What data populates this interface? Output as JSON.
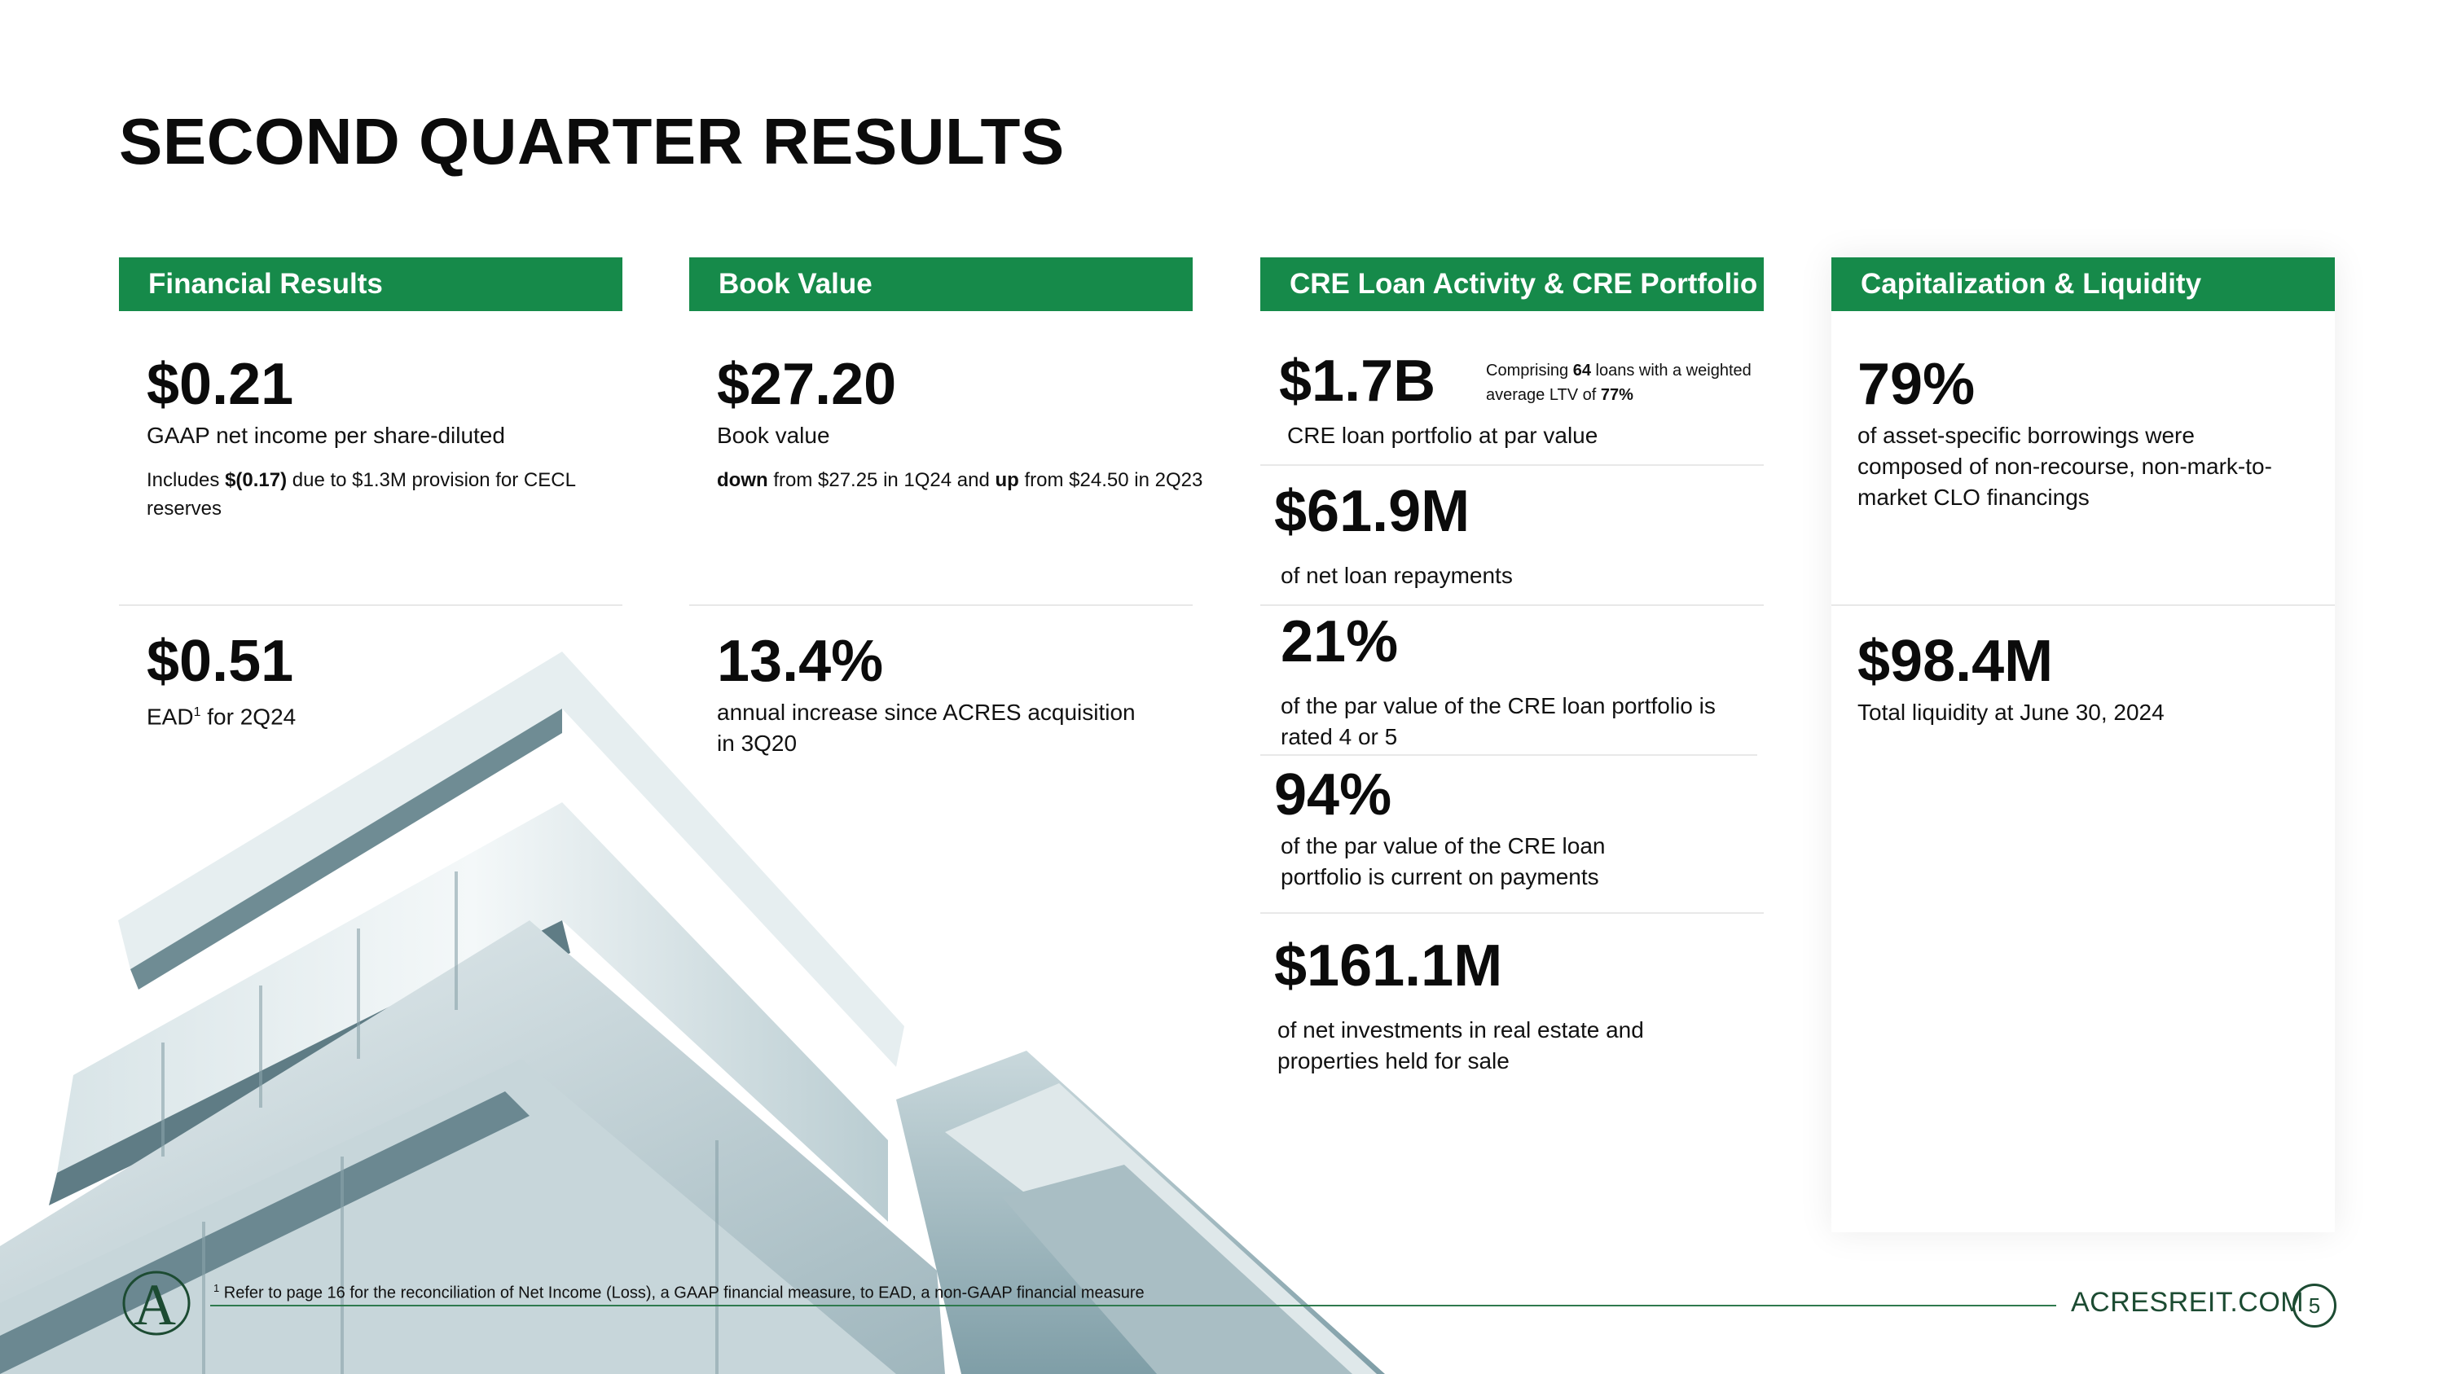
{
  "page": {
    "title": "SECOND QUARTER RESULTS",
    "site": "ACRESREIT.COM",
    "page_number": "5",
    "footnote_marker": "1",
    "footnote": "Refer to page 16 for the reconciliation of Net Income (Loss), a GAAP financial measure, to EAD, a non-GAAP financial measure",
    "logo_letter": "A"
  },
  "colors": {
    "header_green": "#168a4a",
    "footer_green": "#1c4b32"
  },
  "financial": {
    "header": "Financial Results",
    "eps_value": "$0.21",
    "eps_label": "GAAP net income per share-diluted",
    "eps_note_pre": "Includes ",
    "eps_note_bold": "$(0.17)",
    "eps_note_post": " due to $1.3M provision for CECL reserves",
    "ead_value": "$0.51",
    "ead_label_pre": "EAD",
    "ead_label_sup": "1",
    "ead_label_post": " for 2Q24"
  },
  "book": {
    "header": "Book Value",
    "value": "$27.20",
    "label": "Book value",
    "note_b1": "down",
    "note_m": " from $27.25 in 1Q24 and ",
    "note_b2": "up",
    "note_e": " from $24.50 in 2Q23",
    "increase_value": "13.4%",
    "increase_label": "annual increase since ACRES acquisition in 3Q20"
  },
  "cre": {
    "header": "CRE Loan Activity & CRE Portfolio",
    "portfolio_value": "$1.7B",
    "portfolio_note_1": "Comprising ",
    "portfolio_note_b1": "64",
    "portfolio_note_2": " loans with a weighted average LTV of ",
    "portfolio_note_b2": "77%",
    "portfolio_label": "CRE loan portfolio at par value",
    "repay_value": "$61.9M",
    "repay_label": "of net loan repayments",
    "rated_value": "21%",
    "rated_label": "of the par value of the CRE loan portfolio is rated 4 or 5",
    "current_value": "94%",
    "current_label": "of the par value of the CRE loan portfolio is current on payments",
    "invest_value": "$161.1M",
    "invest_label": "of net investments in real estate and properties held for sale"
  },
  "cap": {
    "header": "Capitalization & Liquidity",
    "borrow_value": "79%",
    "borrow_label": "of asset-specific borrowings were composed of non-recourse, non-mark-to-market CLO financings",
    "liquidity_value": "$98.4M",
    "liquidity_label": "Total liquidity at June 30, 2024"
  }
}
